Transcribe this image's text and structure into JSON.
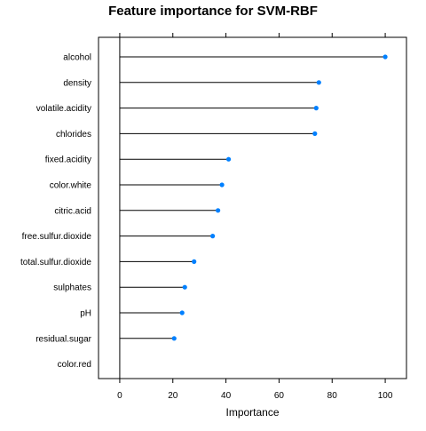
{
  "chart_data": {
    "type": "dot",
    "title": "Feature importance for SVM-RBF",
    "xlabel": "Importance",
    "ylabel": "",
    "xlim": [
      -8,
      108
    ],
    "x_ticks": [
      0,
      20,
      40,
      60,
      80,
      100
    ],
    "grid": false,
    "categories": [
      "alcohol",
      "density",
      "volatile.acidity",
      "chlorides",
      "fixed.acidity",
      "color.white",
      "citric.acid",
      "free.sulfur.dioxide",
      "total.sulfur.dioxide",
      "sulphates",
      "pH",
      "residual.sugar",
      "color.red"
    ],
    "values": [
      100,
      75,
      74,
      73.5,
      41,
      38.5,
      37,
      35,
      28,
      24.5,
      23.5,
      20.5,
      0
    ],
    "point_color": "#0080ff",
    "line_color": "#000000"
  }
}
